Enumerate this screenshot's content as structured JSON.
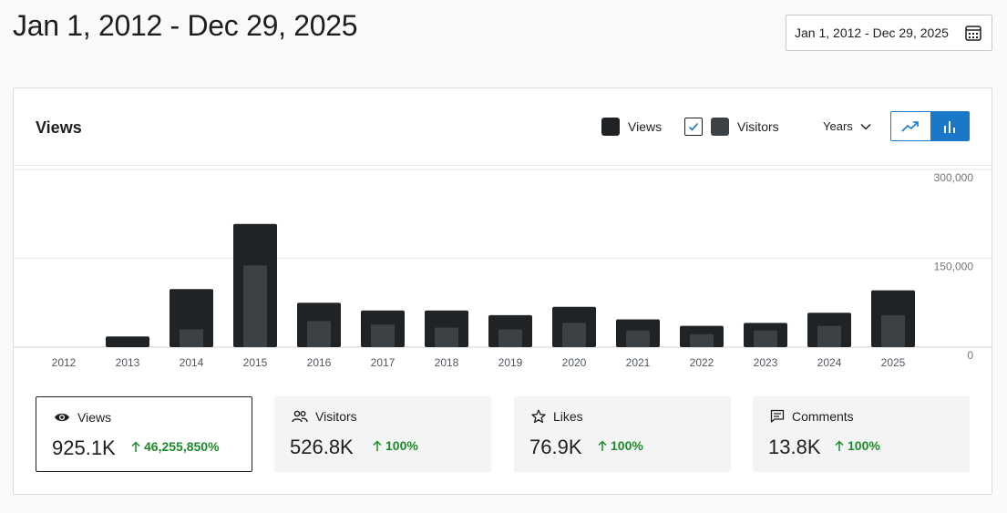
{
  "page": {
    "title": "Jan 1, 2012 - Dec 29, 2025",
    "date_range_label": "Jan 1, 2012 - Dec 29, 2025"
  },
  "chart_card": {
    "title": "Views",
    "legend": {
      "views_label": "Views",
      "visitors_label": "Visitors",
      "visitors_checked": true
    },
    "period": "Years",
    "chart_type_toggle": [
      "line-chart-icon",
      "bar-chart-icon"
    ],
    "active_chart_type": "bar"
  },
  "colors": {
    "views": "#1f2326",
    "visitors": "#3c4145",
    "accent": "#1b78c8",
    "positive": "#1f8a2b"
  },
  "chart_data": {
    "type": "bar",
    "categories": [
      "2012",
      "2013",
      "2014",
      "2015",
      "2016",
      "2017",
      "2018",
      "2019",
      "2020",
      "2021",
      "2022",
      "2023",
      "2024",
      "2025"
    ],
    "series": [
      {
        "name": "Views",
        "values": [
          0,
          18000,
          98000,
          208000,
          75000,
          62000,
          62000,
          54000,
          68000,
          47000,
          36000,
          41000,
          58000,
          96000
        ]
      },
      {
        "name": "Visitors",
        "values": [
          0,
          0,
          30000,
          138000,
          44000,
          38000,
          33000,
          30000,
          41000,
          28000,
          22000,
          28000,
          36000,
          54000
        ]
      }
    ],
    "y_ticks": [
      "300,000",
      "150,000",
      "0"
    ],
    "y_tick_values": [
      300000,
      150000,
      0
    ],
    "ylim": [
      0,
      300000
    ],
    "grid": true
  },
  "stats": [
    {
      "icon": "eye-icon",
      "label": "Views",
      "value": "925.1K",
      "delta": "46,255,850%",
      "active": true
    },
    {
      "icon": "people-icon",
      "label": "Visitors",
      "value": "526.8K",
      "delta": "100%",
      "active": false
    },
    {
      "icon": "star-icon",
      "label": "Likes",
      "value": "76.9K",
      "delta": "100%",
      "active": false
    },
    {
      "icon": "comment-icon",
      "label": "Comments",
      "value": "13.8K",
      "delta": "100%",
      "active": false
    }
  ]
}
